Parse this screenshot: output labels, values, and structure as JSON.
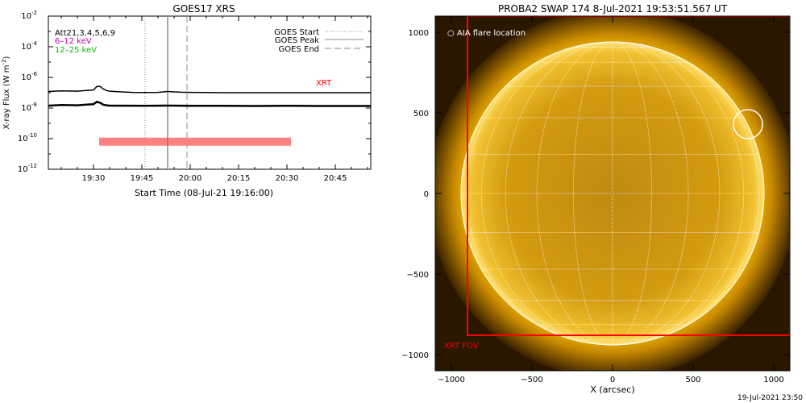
{
  "chart_data": [
    {
      "type": "line",
      "title": "GOES17 XRS",
      "xlabel": "Start Time (08-Jul-21 19:16:00)",
      "ylabel": "X-ray Flux (W m",
      "ylabel_sup": "-2",
      "ylabel_end": ")",
      "x_ticks": [
        "19:30",
        "19:45",
        "20:00",
        "20:15",
        "20:30",
        "20:45"
      ],
      "x_tick_minutes": [
        30,
        45,
        60,
        75,
        90,
        105
      ],
      "x_range_minutes": [
        16,
        116
      ],
      "y_scale": "log",
      "y_range_exp": [
        -12,
        -2
      ],
      "y_ticks": [
        {
          "base": "10",
          "exp": "-2"
        },
        {
          "base": "10",
          "exp": "-4"
        },
        {
          "base": "10",
          "exp": "-6"
        },
        {
          "base": "10",
          "exp": "-8"
        },
        {
          "base": "10",
          "exp": "-10"
        },
        {
          "base": "10",
          "exp": "-12"
        }
      ],
      "y_tick_exps": [
        -2,
        -4,
        -6,
        -8,
        -10,
        -12
      ],
      "annotations": {
        "attenuator": "Att21,3,4,5,6,9",
        "energy_low": "6–12 keV",
        "energy_high": "12–25 keV",
        "xrt": "XRT"
      },
      "legend": {
        "start": "GOES Start",
        "peak": "GOES Peak",
        "end": "GOES End"
      },
      "event_lines_minutes": {
        "start": 46,
        "peak": 53,
        "end": 59
      },
      "series": [
        {
          "name": "6–12 keV",
          "color": "#000000",
          "x": [
            16,
            20,
            25,
            28,
            30,
            31,
            32,
            33,
            34,
            35,
            38,
            42,
            46,
            50,
            53,
            55,
            57,
            60,
            65,
            70,
            80,
            90,
            100,
            110,
            116
          ],
          "y_exp": [
            -6.92,
            -6.88,
            -6.9,
            -6.85,
            -6.83,
            -6.6,
            -6.58,
            -6.75,
            -6.86,
            -6.9,
            -6.94,
            -6.98,
            -6.99,
            -6.98,
            -6.92,
            -6.95,
            -6.97,
            -6.98,
            -6.99,
            -7.0,
            -7.0,
            -7.0,
            -7.0,
            -7.0,
            -7.0
          ]
        },
        {
          "name": "12–25 keV",
          "color": "#000000",
          "x": [
            16,
            20,
            25,
            28,
            30,
            31,
            32,
            33,
            34,
            35,
            40,
            46,
            53,
            60,
            70,
            80,
            90,
            100,
            110,
            116
          ],
          "y_exp": [
            -7.85,
            -7.8,
            -7.82,
            -7.78,
            -7.75,
            -7.6,
            -7.65,
            -7.78,
            -7.82,
            -7.85,
            -7.85,
            -7.86,
            -7.84,
            -7.86,
            -7.86,
            -7.87,
            -7.86,
            -7.87,
            -7.87,
            -7.87
          ]
        }
      ],
      "xrt_bar": {
        "start_minute": 32,
        "end_minute": 91,
        "level_exp": -10.2,
        "color": "#ff0000"
      }
    },
    {
      "type": "heatmap",
      "title": "PROBA2 SWAP 174  8-Jul-2021 19:53:51.567 UT",
      "xlabel": "X (arcsec)",
      "ylabel": "",
      "x_ticks": [
        "−1000",
        "−500",
        "0",
        "500",
        "1000"
      ],
      "x_tick_values": [
        -1000,
        -500,
        0,
        500,
        1000
      ],
      "y_ticks": [
        "1000",
        "500",
        "0",
        "−500",
        "−1000"
      ],
      "y_tick_values": [
        1000,
        500,
        0,
        -500,
        -1000
      ],
      "xlim": [
        -1100,
        1100
      ],
      "ylim": [
        -1100,
        1100
      ],
      "legend_text": "○ AIA flare location",
      "xrt_fov_label": "XRT FOV",
      "xrt_fov": {
        "x_min": -900,
        "x_max": 1100,
        "y_min": -880,
        "y_max": 1100
      },
      "flare_location": {
        "x": 840,
        "y": 430,
        "radius": 90
      },
      "disk_radius_arcsec": 940,
      "colors": {
        "disk": "#e8a000",
        "corona": "#b07000",
        "background": "#1a0d00",
        "fov": "#ff0000",
        "grid": "#ffffff"
      }
    }
  ],
  "footer": {
    "timestamp": "19-Jul-2021 23:50"
  }
}
